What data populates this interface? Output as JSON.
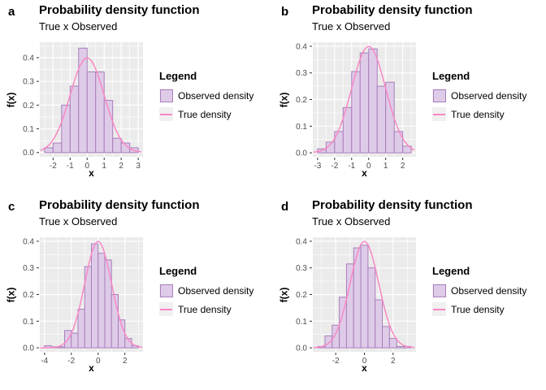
{
  "colors": {
    "page_bg": "#FFFFFF",
    "panel_bg": "#EBEBEB",
    "grid_major": "#FFFFFF",
    "grid_minor": "#FFFFFF",
    "hist_fill": "#DECBE8",
    "hist_stroke": "#A97FBB",
    "curve": "#F888C4",
    "tick_mark": "#333333",
    "tick_label": "#4D4D4D",
    "title_text": "#000000"
  },
  "legend": {
    "title": "Legend",
    "items": [
      {
        "label": "Observed density",
        "swatch": "rect"
      },
      {
        "label": "True density",
        "swatch": "line"
      }
    ]
  },
  "chart_data": [
    {
      "panel_label": "a",
      "title": "Probability density function",
      "subtitle": "True x Observed",
      "type": "histogram+line",
      "xlabel": "x",
      "ylabel": "f(x)",
      "bin_start": -2.5,
      "bin_width": 0.5,
      "bar_heights": [
        0.02,
        0.04,
        0.2,
        0.28,
        0.44,
        0.34,
        0.34,
        0.22,
        0.06,
        0.04,
        0.02
      ],
      "true_density": {
        "distribution": "normal",
        "mean": 0,
        "sd": 1
      },
      "x_ticks": [
        -2,
        -1,
        0,
        1,
        2,
        3
      ],
      "x_minor": [
        -2.5,
        -1.5,
        -0.5,
        0.5,
        1.5,
        2.5
      ],
      "y_ticks": [
        0.0,
        0.1,
        0.2,
        0.3,
        0.4
      ],
      "y_minor": [
        0.05,
        0.15,
        0.25,
        0.35,
        0.45
      ],
      "xlim": [
        -2.78,
        3.28
      ],
      "ylim": [
        -0.018,
        0.465
      ]
    },
    {
      "panel_label": "b",
      "title": "Probability density function",
      "subtitle": "True x Observed",
      "type": "histogram+line",
      "xlabel": "x",
      "ylabel": "f(x)",
      "bin_start": -3.0,
      "bin_width": 0.5,
      "bar_heights": [
        0.015,
        0.04,
        0.08,
        0.17,
        0.305,
        0.375,
        0.39,
        0.25,
        0.265,
        0.08,
        0.025
      ],
      "true_density": {
        "distribution": "normal",
        "mean": 0,
        "sd": 1
      },
      "x_ticks": [
        -3,
        -2,
        -1,
        0,
        1,
        2
      ],
      "x_minor": [
        -2.5,
        -1.5,
        -0.5,
        0.5,
        1.5,
        2.5
      ],
      "y_ticks": [
        0.0,
        0.1,
        0.2,
        0.3,
        0.4
      ],
      "y_minor": [
        0.05,
        0.15,
        0.25,
        0.35
      ],
      "xlim": [
        -3.28,
        2.78
      ],
      "ylim": [
        -0.015,
        0.415
      ]
    },
    {
      "panel_label": "c",
      "title": "Probability density function",
      "subtitle": "True x Observed",
      "type": "histogram+line",
      "xlabel": "x",
      "ylabel": "f(x)",
      "bin_start": -4.0,
      "bin_width": 0.5,
      "bar_heights": [
        0.008,
        0.004,
        0.004,
        0.065,
        0.055,
        0.145,
        0.305,
        0.39,
        0.355,
        0.33,
        0.2,
        0.105,
        0.035,
        0.008
      ],
      "true_density": {
        "distribution": "normal",
        "mean": 0,
        "sd": 1
      },
      "x_ticks": [
        -4,
        -2,
        0,
        2
      ],
      "x_minor": [
        -3,
        -1,
        1,
        3
      ],
      "y_ticks": [
        0.0,
        0.1,
        0.2,
        0.3,
        0.4
      ],
      "y_minor": [
        0.05,
        0.15,
        0.25,
        0.35
      ],
      "xlim": [
        -4.35,
        3.35
      ],
      "ylim": [
        -0.015,
        0.415
      ]
    },
    {
      "panel_label": "d",
      "title": "Probability density function",
      "subtitle": "True x Observed",
      "type": "histogram+line",
      "xlabel": "x",
      "ylabel": "f(x)",
      "bin_start": -3.25,
      "bin_width": 0.5,
      "bar_heights": [
        0.005,
        0.045,
        0.085,
        0.19,
        0.315,
        0.375,
        0.385,
        0.3,
        0.18,
        0.08,
        0.035,
        0.005,
        0.005
      ],
      "true_density": {
        "distribution": "normal",
        "mean": 0,
        "sd": 1
      },
      "x_ticks": [
        -2,
        0,
        2
      ],
      "x_minor": [
        -3,
        -1,
        1,
        3
      ],
      "y_ticks": [
        0.0,
        0.1,
        0.2,
        0.3,
        0.4
      ],
      "y_minor": [
        0.05,
        0.15,
        0.25,
        0.35
      ],
      "xlim": [
        -3.6,
        3.6
      ],
      "ylim": [
        -0.015,
        0.415
      ]
    }
  ]
}
